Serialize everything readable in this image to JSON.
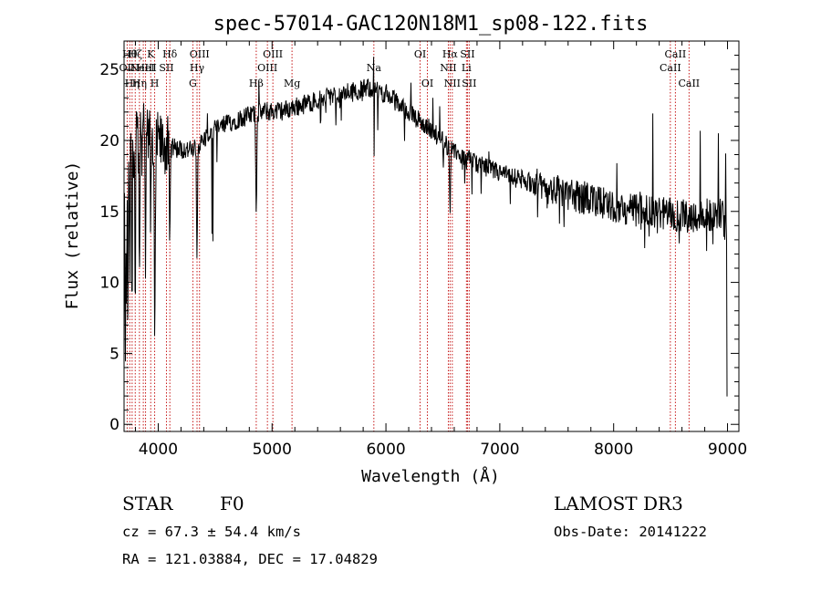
{
  "chart_data": {
    "type": "line",
    "title": "spec-57014-GAC120N18M1_sp08-122.fits",
    "xlabel": "Wavelength (Å)",
    "ylabel": "Flux (relative)",
    "xlim": [
      3700,
      9100
    ],
    "ylim": [
      -0.5,
      27
    ],
    "xticks": [
      4000,
      5000,
      6000,
      7000,
      8000,
      9000
    ],
    "xtick_labels": [
      "4000",
      "5000",
      "6000",
      "7000",
      "8000",
      "9000"
    ],
    "yticks": [
      0,
      5,
      10,
      15,
      20,
      25
    ],
    "ytick_labels": [
      "0",
      "5",
      "10",
      "15",
      "20",
      "25"
    ],
    "continuum_anchors": {
      "x": [
        3700,
        3760,
        3850,
        3950,
        4100,
        4300,
        4500,
        4700,
        4900,
        5100,
        5300,
        5500,
        5700,
        5850,
        6000,
        6200,
        6400,
        6550,
        6800,
        7000,
        7200,
        7500,
        7800,
        8000,
        8200,
        8400,
        8600,
        8800,
        8950,
        9000
      ],
      "y": [
        14,
        19,
        21,
        20,
        19.5,
        19.3,
        20.8,
        21.5,
        22,
        22.1,
        22.6,
        23.1,
        23.4,
        23.7,
        23.3,
        22.0,
        20.7,
        19.5,
        18.3,
        17.7,
        17.2,
        16.5,
        15.8,
        15.4,
        15.0,
        14.9,
        14.7,
        14.7,
        14.9,
        13.5
      ]
    },
    "absorption_features": [
      {
        "x": 3712,
        "depth": 12,
        "width": 4
      },
      {
        "x": 3722,
        "depth": 9,
        "width": 3
      },
      {
        "x": 3734,
        "depth": 13,
        "width": 3
      },
      {
        "x": 3750,
        "depth": 11,
        "width": 3
      },
      {
        "x": 3770,
        "depth": 12,
        "width": 4
      },
      {
        "x": 3798,
        "depth": 14,
        "width": 4
      },
      {
        "x": 3835,
        "depth": 12,
        "width": 5
      },
      {
        "x": 3889,
        "depth": 10,
        "width": 5
      },
      {
        "x": 3934,
        "depth": 7,
        "width": 4
      },
      {
        "x": 3970,
        "depth": 15,
        "width": 6
      },
      {
        "x": 4101,
        "depth": 7,
        "width": 6
      },
      {
        "x": 4340,
        "depth": 8,
        "width": 6
      },
      {
        "x": 4861,
        "depth": 7,
        "width": 6
      },
      {
        "x": 5894,
        "depth": 14,
        "width": 2
      },
      {
        "x": 6563,
        "depth": 5,
        "width": 6
      }
    ],
    "emission_spikes": [
      {
        "x": 5893,
        "height": 8
      },
      {
        "x": 7320,
        "height": 4
      },
      {
        "x": 8345,
        "height": 6
      },
      {
        "x": 8760,
        "height": 5
      },
      {
        "x": 8920,
        "height": 5
      },
      {
        "x": 8985,
        "height": 4
      }
    ],
    "line_markers": [
      {
        "x": 3727,
        "label": "OII",
        "row": 2
      },
      {
        "x": 3750,
        "label": "Hθ",
        "row": 1
      },
      {
        "x": 3771,
        "label": "Hη",
        "row": 3
      },
      {
        "x": 3798,
        "label": "Hζ",
        "row": 1
      },
      {
        "x": 3835,
        "label": "Hη",
        "row": 3
      },
      {
        "x": 3869,
        "label": "NeIII",
        "row": 2
      },
      {
        "x": 3889,
        "label": "HeI",
        "row": 2
      },
      {
        "x": 3934,
        "label": "K",
        "row": 1
      },
      {
        "x": 3969,
        "label": "H",
        "row": 3
      },
      {
        "x": 4072,
        "label": "SII",
        "row": 2
      },
      {
        "x": 4102,
        "label": "Hδ",
        "row": 1
      },
      {
        "x": 4304,
        "label": "G",
        "row": 3
      },
      {
        "x": 4341,
        "label": "Hγ",
        "row": 2
      },
      {
        "x": 4363,
        "label": "OIII",
        "row": 1
      },
      {
        "x": 4861,
        "label": "Hβ",
        "row": 3
      },
      {
        "x": 4959,
        "label": "OIII",
        "row": 2
      },
      {
        "x": 5007,
        "label": "OIII",
        "row": 1
      },
      {
        "x": 5175,
        "label": "Mg",
        "row": 3
      },
      {
        "x": 5894,
        "label": "Na",
        "row": 2
      },
      {
        "x": 6300,
        "label": "OI",
        "row": 1
      },
      {
        "x": 6364,
        "label": "OI",
        "row": 3
      },
      {
        "x": 6548,
        "label": "NII",
        "row": 2
      },
      {
        "x": 6563,
        "label": "Hα",
        "row": 1
      },
      {
        "x": 6583,
        "label": "NII",
        "row": 3
      },
      {
        "x": 6707,
        "label": "Li",
        "row": 2
      },
      {
        "x": 6716,
        "label": "SII",
        "row": 1
      },
      {
        "x": 6731,
        "label": "SII",
        "row": 3
      },
      {
        "x": 8498,
        "label": "CaII",
        "row": 2
      },
      {
        "x": 8542,
        "label": "CaII",
        "row": 1
      },
      {
        "x": 8662,
        "label": "CaII",
        "row": 3
      }
    ]
  },
  "info": {
    "class_label": "STAR",
    "subclass_label": "F0",
    "survey_label": "LAMOST DR3",
    "redshift_text": "cz = 67.3 ± 54.4 km/s",
    "obs_date_text": "Obs-Date: 20141222",
    "coords_text": "RA = 121.03884, DEC =  17.04829"
  },
  "colors": {
    "spectrum": "#000000",
    "marker": "#c00000",
    "axis": "#000000",
    "background": "#ffffff"
  }
}
